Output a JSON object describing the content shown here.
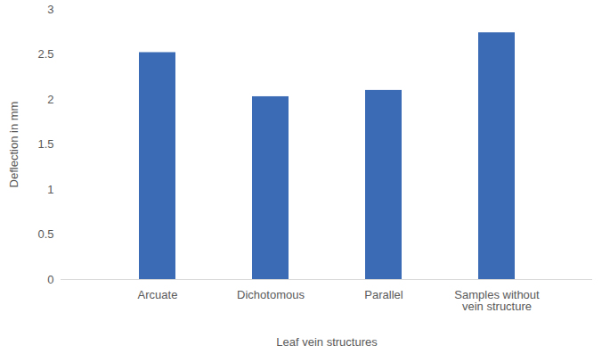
{
  "chart_data": {
    "type": "bar",
    "categories": [
      "Arcuate",
      "Dichotomous",
      "Parallel",
      "Samples without vein structure"
    ],
    "values": [
      2.52,
      2.03,
      2.1,
      2.74
    ],
    "color": "#3c6bb5",
    "xlabel": "Leaf vein structures",
    "ylabel": "Deflection in mm",
    "ylim": [
      0,
      3
    ],
    "yticks": [
      0,
      0.5,
      1,
      1.5,
      2,
      2.5,
      3
    ],
    "grid": false
  }
}
